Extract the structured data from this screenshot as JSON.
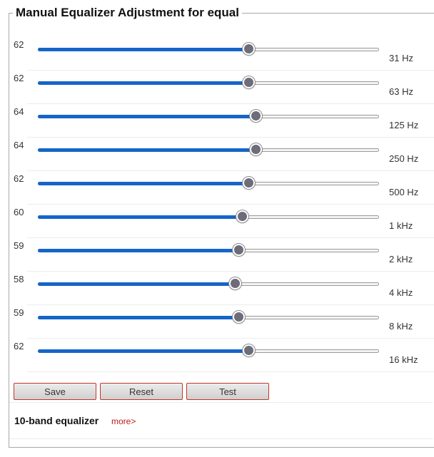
{
  "title": "Manual Equalizer Adjustment for equal",
  "slider": {
    "min": 0,
    "max": 100
  },
  "bands": [
    {
      "value": 62,
      "freq": "31 Hz"
    },
    {
      "value": 62,
      "freq": "63 Hz"
    },
    {
      "value": 64,
      "freq": "125 Hz"
    },
    {
      "value": 64,
      "freq": "250 Hz"
    },
    {
      "value": 62,
      "freq": "500 Hz"
    },
    {
      "value": 60,
      "freq": "1 kHz"
    },
    {
      "value": 59,
      "freq": "2 kHz"
    },
    {
      "value": 58,
      "freq": "4 kHz"
    },
    {
      "value": 59,
      "freq": "8 kHz"
    },
    {
      "value": 62,
      "freq": "16 kHz"
    }
  ],
  "buttons": {
    "save": "Save",
    "reset": "Reset",
    "test": "Test"
  },
  "footer": {
    "title": "10-band equalizer",
    "more": "more>"
  },
  "colors": {
    "fill": "#1565c8",
    "thumb": "#6c6c7a",
    "button_border": "#c0382b",
    "link": "#c0181a"
  }
}
